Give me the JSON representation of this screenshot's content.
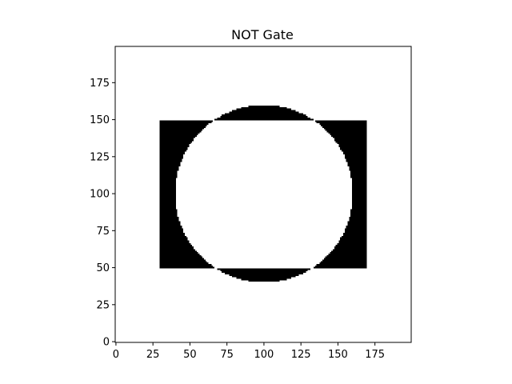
{
  "chart_data": {
    "type": "heatmap",
    "title": "NOT Gate",
    "image_size": [
      200,
      200
    ],
    "colormap": "binary (0 = white, 1 = black)",
    "description_of_pixels": "value = XOR(inside rectangle, inside circle)",
    "rectangle": {
      "x_range": [
        30,
        170
      ],
      "y_range": [
        50,
        150
      ]
    },
    "circle": {
      "center": [
        100,
        100
      ],
      "radius": 60
    },
    "x_ticks": [
      0,
      25,
      50,
      75,
      100,
      125,
      150,
      175
    ],
    "y_ticks": [
      0,
      25,
      50,
      75,
      100,
      125,
      150,
      175
    ],
    "xlim": [
      -0.5,
      199.5
    ],
    "ylim": [
      199.5,
      -0.5
    ],
    "grid": false,
    "colors": {
      "fill": "#000000",
      "background": "#ffffff",
      "axis": "#000000"
    }
  }
}
